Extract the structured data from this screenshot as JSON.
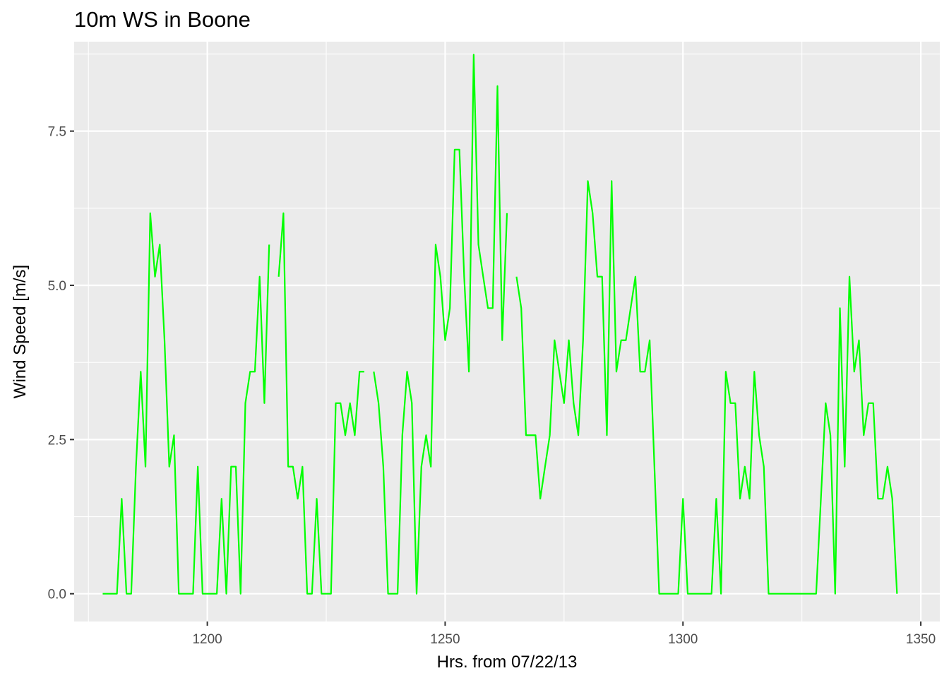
{
  "chart_data": {
    "type": "line",
    "title": "10m WS in Boone",
    "xlabel": "Hrs. from 07/22/13",
    "ylabel": "Wind Speed [m/s]",
    "xlim": [
      1172,
      1354
    ],
    "ylim": [
      -0.45,
      8.95
    ],
    "x_ticks": [
      1200,
      1250,
      1300,
      1350
    ],
    "x_tick_labels": [
      "1200",
      "1250",
      "1300",
      "1350"
    ],
    "y_ticks": [
      0,
      2.5,
      5,
      7.5
    ],
    "y_tick_labels": [
      "0.0",
      "2.5",
      "5.0",
      "7.5"
    ],
    "grid": true,
    "line_color": "#00ff00",
    "panel_color": "#ebebeb",
    "series": [
      {
        "values": [
          [
            1178,
            0
          ],
          [
            1179,
            0
          ],
          [
            1180,
            0
          ],
          [
            1181,
            0
          ],
          [
            1182,
            1.54
          ],
          [
            1183,
            0
          ],
          [
            1184,
            0
          ],
          [
            1185,
            2.06
          ],
          [
            1186,
            3.6
          ],
          [
            1187,
            2.06
          ],
          [
            1188,
            6.17
          ],
          [
            1189,
            5.14
          ],
          [
            1190,
            5.66
          ],
          [
            1191,
            4.11
          ],
          [
            1192,
            2.06
          ],
          [
            1193,
            2.57
          ],
          [
            1194,
            0
          ],
          [
            1195,
            0
          ],
          [
            1196,
            0
          ],
          [
            1197,
            0
          ],
          [
            1198,
            2.06
          ],
          [
            1199,
            0
          ],
          [
            1200,
            0
          ],
          [
            1201,
            0
          ],
          [
            1202,
            0
          ],
          [
            1203,
            1.54
          ],
          [
            1204,
            0
          ],
          [
            1205,
            2.06
          ],
          [
            1206,
            2.06
          ],
          [
            1207,
            0
          ],
          [
            1208,
            3.09
          ],
          [
            1209,
            3.6
          ],
          [
            1210,
            3.6
          ],
          [
            1211,
            5.14
          ],
          [
            1212,
            3.09
          ],
          [
            1213,
            5.66
          ],
          null,
          [
            1215,
            5.14
          ],
          [
            1216,
            6.17
          ],
          [
            1217,
            2.06
          ],
          [
            1218,
            2.06
          ],
          [
            1219,
            1.54
          ],
          [
            1220,
            2.06
          ],
          [
            1221,
            0
          ],
          [
            1222,
            0
          ],
          [
            1223,
            1.54
          ],
          [
            1224,
            0
          ],
          [
            1225,
            0
          ],
          [
            1226,
            0
          ],
          [
            1227,
            3.09
          ],
          [
            1228,
            3.09
          ],
          [
            1229,
            2.57
          ],
          [
            1230,
            3.09
          ],
          [
            1231,
            2.57
          ],
          [
            1232,
            3.6
          ],
          [
            1233,
            3.6
          ],
          null,
          [
            1235,
            3.6
          ],
          [
            1236,
            3.09
          ],
          [
            1237,
            2.06
          ],
          [
            1238,
            0
          ],
          [
            1239,
            0
          ],
          [
            1240,
            0
          ],
          [
            1241,
            2.57
          ],
          [
            1242,
            3.6
          ],
          [
            1243,
            3.09
          ],
          [
            1244,
            0
          ],
          [
            1245,
            2.06
          ],
          [
            1246,
            2.57
          ],
          [
            1247,
            2.06
          ],
          [
            1248,
            5.66
          ],
          [
            1249,
            5.14
          ],
          [
            1250,
            4.11
          ],
          [
            1251,
            4.63
          ],
          [
            1252,
            7.2
          ],
          [
            1253,
            7.2
          ],
          [
            1254,
            5.14
          ],
          [
            1255,
            3.6
          ],
          [
            1256,
            8.74
          ],
          [
            1257,
            5.66
          ],
          [
            1258,
            5.14
          ],
          [
            1259,
            4.63
          ],
          [
            1260,
            4.63
          ],
          [
            1261,
            8.23
          ],
          [
            1262,
            4.11
          ],
          [
            1263,
            6.17
          ],
          null,
          [
            1265,
            5.14
          ],
          [
            1266,
            4.63
          ],
          [
            1267,
            2.57
          ],
          [
            1268,
            2.57
          ],
          [
            1269,
            2.57
          ],
          [
            1270,
            1.54
          ],
          [
            1271,
            2.06
          ],
          [
            1272,
            2.57
          ],
          [
            1273,
            4.11
          ],
          [
            1274,
            3.6
          ],
          [
            1275,
            3.09
          ],
          [
            1276,
            4.11
          ],
          [
            1277,
            3.09
          ],
          [
            1278,
            2.57
          ],
          [
            1279,
            4.11
          ],
          [
            1280,
            6.69
          ],
          [
            1281,
            6.17
          ],
          [
            1282,
            5.14
          ],
          [
            1283,
            5.14
          ],
          [
            1284,
            2.57
          ],
          [
            1285,
            6.69
          ],
          [
            1286,
            3.6
          ],
          [
            1287,
            4.11
          ],
          [
            1288,
            4.11
          ],
          [
            1289,
            4.63
          ],
          [
            1290,
            5.14
          ],
          [
            1291,
            3.6
          ],
          [
            1292,
            3.6
          ],
          [
            1293,
            4.11
          ],
          [
            1294,
            2.06
          ],
          [
            1295,
            0
          ],
          [
            1296,
            0
          ],
          [
            1297,
            0
          ],
          [
            1298,
            0
          ],
          [
            1299,
            0
          ],
          [
            1300,
            1.54
          ],
          [
            1301,
            0
          ],
          [
            1302,
            0
          ],
          [
            1303,
            0
          ],
          [
            1304,
            0
          ],
          [
            1305,
            0
          ],
          [
            1306,
            0
          ],
          [
            1307,
            1.54
          ],
          [
            1308,
            0
          ],
          [
            1309,
            3.6
          ],
          [
            1310,
            3.09
          ],
          [
            1311,
            3.09
          ],
          [
            1312,
            1.54
          ],
          [
            1313,
            2.06
          ],
          [
            1314,
            1.54
          ],
          [
            1315,
            3.6
          ],
          [
            1316,
            2.57
          ],
          [
            1317,
            2.06
          ],
          [
            1318,
            0
          ],
          [
            1319,
            0
          ],
          [
            1320,
            0
          ],
          [
            1321,
            0
          ],
          [
            1322,
            0
          ],
          [
            1323,
            0
          ],
          [
            1324,
            0
          ],
          [
            1325,
            0
          ],
          [
            1326,
            0
          ],
          [
            1327,
            0
          ],
          [
            1328,
            0
          ],
          [
            1329,
            1.54
          ],
          [
            1330,
            3.09
          ],
          [
            1331,
            2.57
          ],
          [
            1332,
            0
          ],
          [
            1333,
            4.63
          ],
          [
            1334,
            2.06
          ],
          [
            1335,
            5.14
          ],
          [
            1336,
            3.6
          ],
          [
            1337,
            4.11
          ],
          [
            1338,
            2.57
          ],
          [
            1339,
            3.09
          ],
          [
            1340,
            3.09
          ],
          [
            1341,
            1.54
          ],
          [
            1342,
            1.54
          ],
          [
            1343,
            2.06
          ],
          [
            1344,
            1.54
          ],
          [
            1345,
            0
          ]
        ]
      }
    ]
  }
}
